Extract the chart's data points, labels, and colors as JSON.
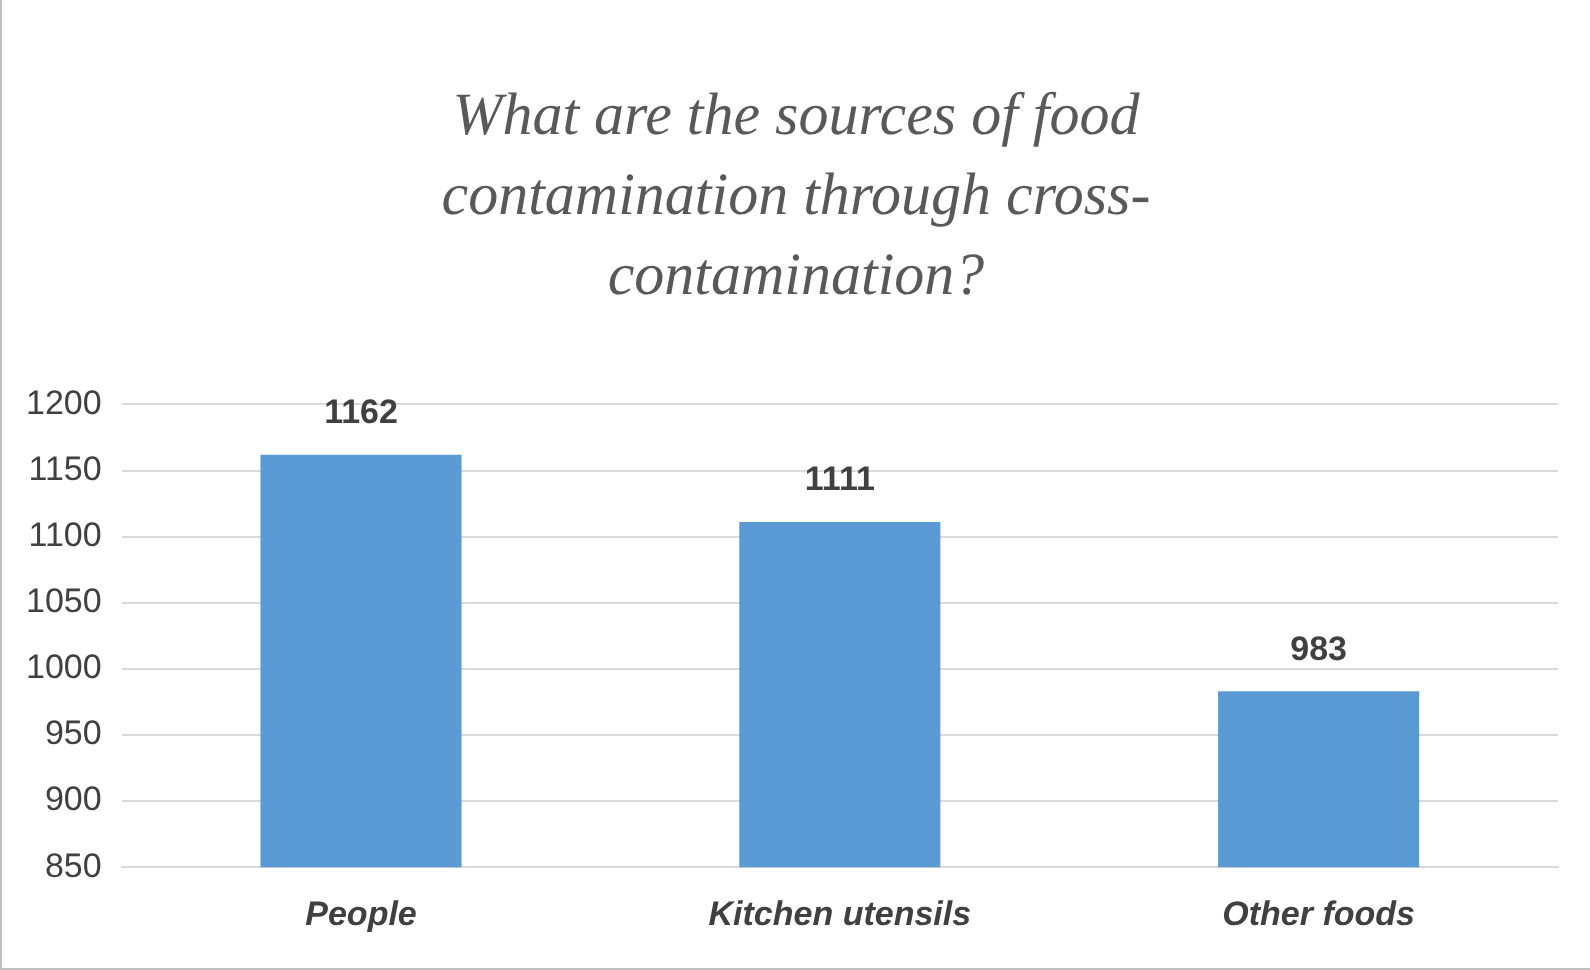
{
  "chart_data": {
    "type": "bar",
    "title": "What are the sources of food contamination through cross-contamination?",
    "categories": [
      "People",
      "Kitchen utensils",
      "Other foods"
    ],
    "values": [
      1162,
      1111,
      983
    ],
    "color": "#5b9bd5",
    "ylim": [
      850,
      1200
    ],
    "yticks": [
      850,
      900,
      950,
      1000,
      1050,
      1100,
      1150,
      1200
    ],
    "grid": "y",
    "data_labels": true,
    "legend": false
  }
}
